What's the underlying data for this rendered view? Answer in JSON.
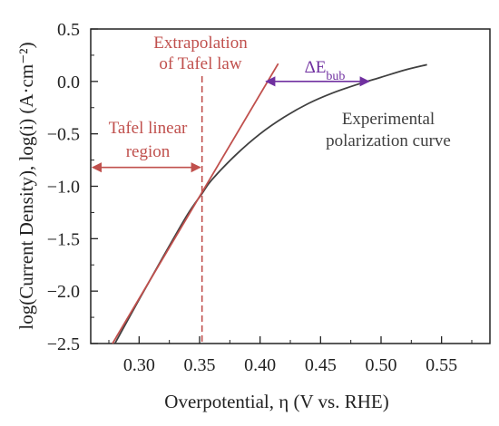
{
  "chart_data": {
    "type": "line",
    "xlabel": "Overpotential, η (V vs. RHE)",
    "ylabel": "log(Current Density), log(i) (A·cm⁻²)",
    "xlim": [
      0.26,
      0.59
    ],
    "ylim": [
      -2.5,
      0.5
    ],
    "xticks": [
      "0.30",
      "0.35",
      "0.40",
      "0.45",
      "0.50",
      "0.55"
    ],
    "xtick_values": [
      0.3,
      0.35,
      0.4,
      0.45,
      0.5,
      0.55
    ],
    "yticks": [
      "0.5",
      "0.0",
      "−0.5",
      "−1.0",
      "−1.5",
      "−2.0",
      "−2.5"
    ],
    "ytick_values": [
      0.5,
      0.0,
      -0.5,
      -1.0,
      -1.5,
      -2.0,
      -2.5
    ],
    "grid": false,
    "series": [
      {
        "name": "Experimental polarization curve",
        "color": "#404040",
        "x": [
          0.28,
          0.3,
          0.32,
          0.34,
          0.352,
          0.36,
          0.38,
          0.4,
          0.42,
          0.44,
          0.46,
          0.48,
          0.5,
          0.52,
          0.538
        ],
        "y": [
          -2.5,
          -2.08,
          -1.67,
          -1.27,
          -1.07,
          -0.94,
          -0.7,
          -0.5,
          -0.34,
          -0.21,
          -0.11,
          -0.03,
          0.04,
          0.11,
          0.16
        ]
      },
      {
        "name": "Extrapolation of Tafel law",
        "color": "#c0504d",
        "x": [
          0.278,
          0.415
        ],
        "y": [
          -2.5,
          0.17
        ]
      }
    ],
    "annotations": {
      "tafel_law_line1": "Extrapolation",
      "tafel_law_line2": "of Tafel law",
      "tafel_region_line1": "Tafel linear",
      "tafel_region_line2": "region",
      "experimental_line1": "Experimental",
      "experimental_line2": "polarization curve",
      "delta_e_prefix": "ΔE",
      "delta_e_sub": "bub",
      "tafel_limit_x": 0.352,
      "tafel_region_y": -0.82,
      "delta_e_y": 0.0,
      "delta_e_x_from": 0.405,
      "delta_e_x_to": 0.49
    },
    "colors": {
      "tafel": "#c0504d",
      "curve": "#404040",
      "bubble": "#7030a0",
      "axis": "#222222"
    }
  }
}
